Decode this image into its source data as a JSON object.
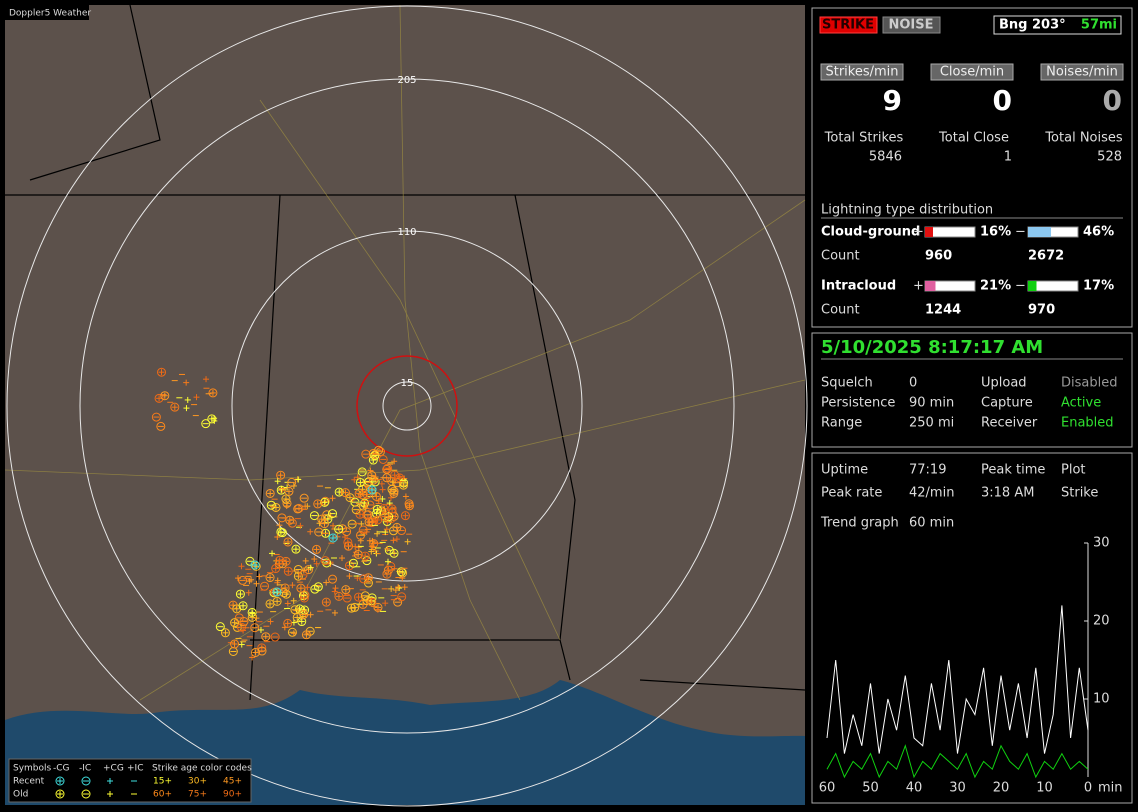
{
  "map": {
    "title": "Doppler5 Weather",
    "ring_labels": [
      "205",
      "110",
      "15"
    ],
    "legend": {
      "symbols": "Symbols",
      "types": [
        "-CG",
        "-IC",
        "+CG",
        "+IC"
      ],
      "age_title": "Strike age color codes",
      "rows": [
        "Recent",
        "Old"
      ],
      "ages": [
        {
          "label": "15+",
          "color": "#ffff33"
        },
        {
          "label": "30+",
          "color": "#ffbb22"
        },
        {
          "label": "45+",
          "color": "#ff9922"
        },
        {
          "label": "60+",
          "color": "#ff8a1a"
        },
        {
          "label": "75+",
          "color": "#f57a1a"
        },
        {
          "label": "90+",
          "color": "#ee6a16"
        }
      ]
    }
  },
  "status": {
    "strike": "STRIKE",
    "noise": "NOISE",
    "bearing": "Bng 203°",
    "distance": "57mi"
  },
  "rates": [
    {
      "label": "Strikes/min",
      "value": 9,
      "total_label": "Total Strikes",
      "total": 5846
    },
    {
      "label": "Close/min",
      "value": 0,
      "total_label": "Total Close",
      "total": 1
    },
    {
      "label": "Noises/min",
      "value": 0,
      "total_label": "Total Noises",
      "total": 528
    }
  ],
  "distribution": {
    "title": "Lightning type distribution",
    "count_label": "Count",
    "plus": "+",
    "minus": "−",
    "rows": [
      {
        "name": "Cloud-ground",
        "plus": {
          "value": 16,
          "label": "16%"
        },
        "minus": {
          "value": 46,
          "label": "46%"
        },
        "plus_count": 960,
        "minus_count": 2672,
        "plus_color": "#e01010",
        "minus_color": "#8cc8f0"
      },
      {
        "name": "Intracloud",
        "plus": {
          "value": 21,
          "label": "21%"
        },
        "minus": {
          "value": 17,
          "label": "17%"
        },
        "plus_count": 1244,
        "minus_count": 970,
        "plus_color": "#e060a0",
        "minus_color": "#10d010"
      }
    ]
  },
  "datetime": "5/10/2025 8:17:17 AM",
  "settings": [
    [
      "Squelch",
      "0",
      "Upload",
      "Disabled"
    ],
    [
      "Persistence",
      "90 min",
      "Capture",
      "Active"
    ],
    [
      "Range",
      "250 mi",
      "Receiver",
      "Enabled"
    ]
  ],
  "stats": [
    [
      "Uptime",
      "77:19",
      "Peak time",
      "Plot"
    ],
    [
      "Peak rate",
      "42/min",
      "3:18 AM",
      "Strike"
    ],
    [
      "Trend graph",
      "60 min"
    ]
  ],
  "trend": {
    "type": "line",
    "xlim": [
      60,
      0
    ],
    "ylim": [
      0,
      30
    ],
    "xticks": [
      60,
      50,
      40,
      30,
      20,
      10,
      0
    ],
    "yticks": [
      10,
      20,
      30
    ],
    "x_unit": "min",
    "x": [
      60,
      58,
      56,
      54,
      52,
      50,
      48,
      46,
      44,
      42,
      40,
      38,
      36,
      34,
      32,
      30,
      28,
      26,
      24,
      22,
      20,
      18,
      16,
      14,
      12,
      10,
      8,
      6,
      4,
      2,
      0
    ],
    "series": [
      {
        "name": "Strikes",
        "color": "#ffffff",
        "values": [
          5,
          15,
          3,
          8,
          4,
          12,
          3,
          10,
          6,
          13,
          5,
          4,
          12,
          6,
          15,
          3,
          10,
          8,
          14,
          4,
          13,
          6,
          12,
          5,
          14,
          3,
          8,
          22,
          5,
          14,
          6
        ]
      },
      {
        "name": "Intracloud",
        "color": "#10d010",
        "values": [
          1,
          3,
          0,
          2,
          1,
          3,
          0,
          2,
          1,
          4,
          0,
          2,
          1,
          3,
          2,
          1,
          3,
          0,
          2,
          1,
          4,
          2,
          1,
          3,
          0,
          2,
          1,
          3,
          1,
          2,
          1
        ]
      }
    ]
  }
}
